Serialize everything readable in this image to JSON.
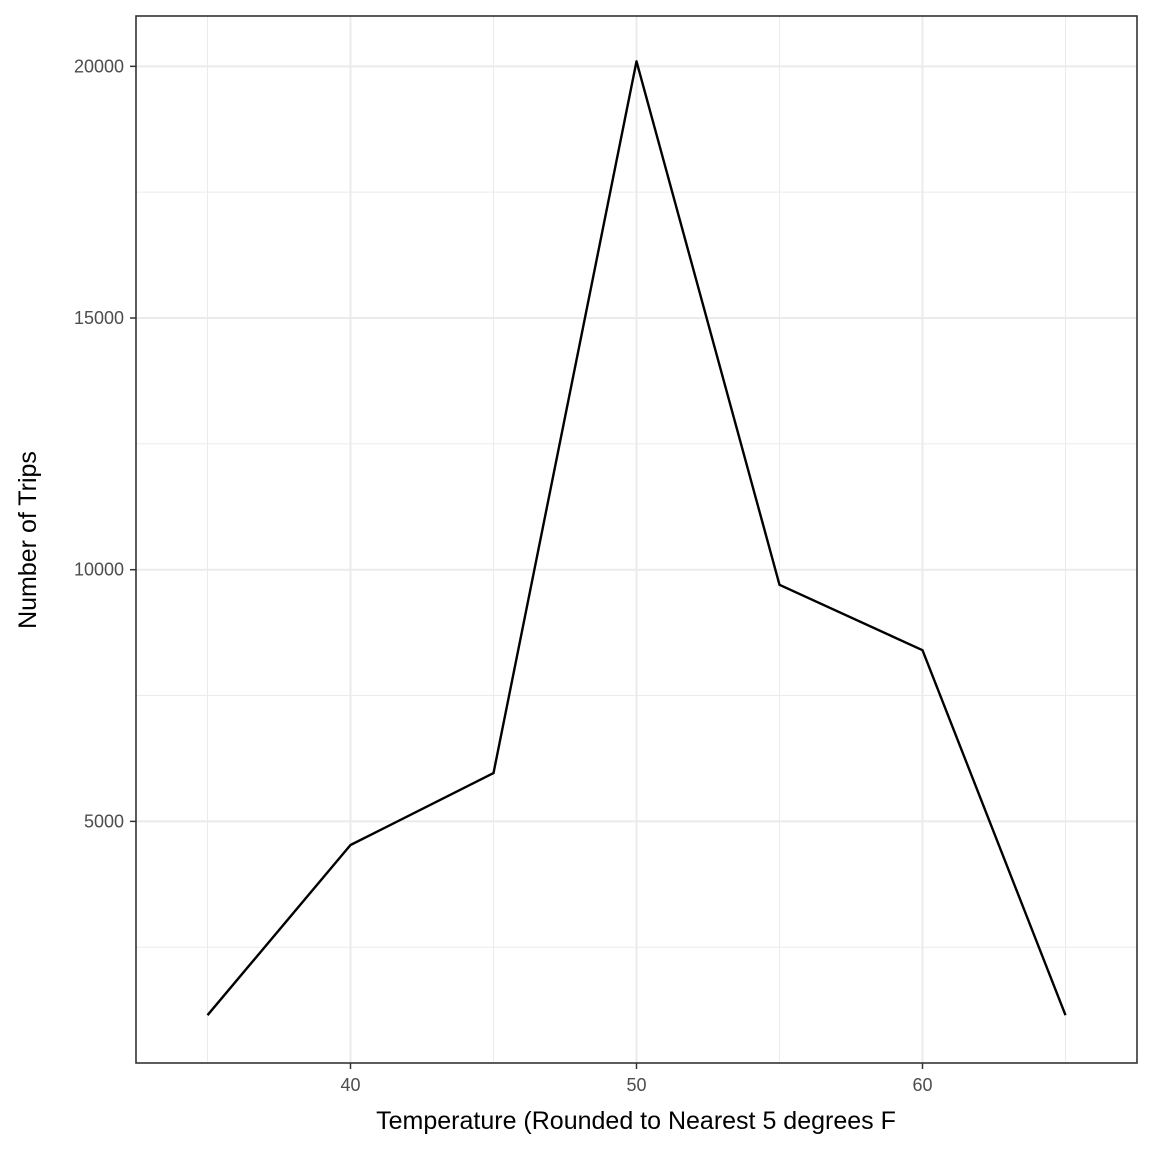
{
  "chart_data": {
    "type": "line",
    "title": "",
    "xlabel": "Temperature (Rounded to Nearest 5 degrees F",
    "ylabel": "Number of Trips",
    "x": [
      35,
      40,
      45,
      50,
      55,
      60,
      65
    ],
    "series": [
      {
        "values": [
          1150,
          4530,
          5960,
          20100,
          9700,
          8400,
          1150
        ]
      }
    ],
    "xlim": [
      32.5,
      67.5
    ],
    "ylim": [
      200,
      21000
    ],
    "xticks": [
      40,
      50,
      60
    ],
    "yticks": [
      5000,
      10000,
      15000,
      20000
    ],
    "x_minor_grid": [
      35,
      45,
      55,
      65
    ],
    "y_minor_grid": [
      2500,
      7500,
      12500,
      17500
    ],
    "grid": true,
    "legend": "none",
    "colors": {
      "line": "#000000",
      "grid": "#ebebeb",
      "panel_border": "#333333",
      "tick_text": "#4d4d4d"
    }
  }
}
